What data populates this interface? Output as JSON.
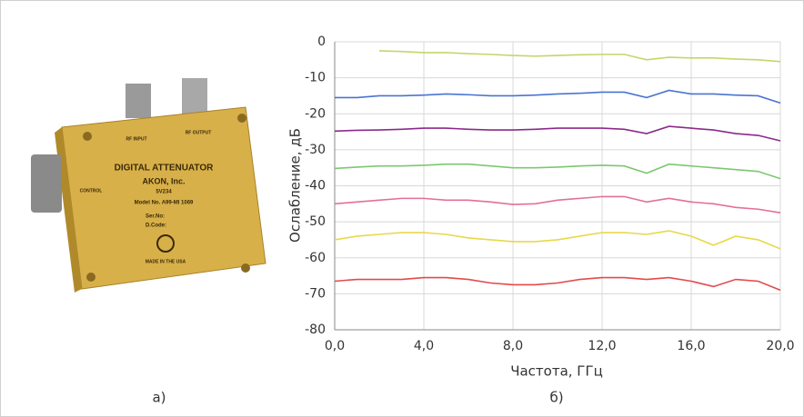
{
  "captions": [
    "а)",
    "б)"
  ],
  "photo": {
    "labels": [
      "RF INPUT",
      "RF OUTPUT",
      "DIGITAL ATTENUATOR",
      "AKON, Inc.",
      "5V234",
      "Model No. A99-MI 1069",
      "Ser.No:",
      "D.Code:",
      "MADE IN THE USA",
      "CONTROL"
    ]
  },
  "chart_data": {
    "type": "line",
    "xlabel": "Частота, ГГц",
    "ylabel": "Ослабление, дБ",
    "x": [
      0,
      1,
      2,
      3,
      4,
      5,
      6,
      7,
      8,
      9,
      10,
      11,
      12,
      13,
      14,
      15,
      16,
      17,
      18,
      19,
      20
    ],
    "xlim": [
      0,
      20
    ],
    "xticks": [
      {
        "value": 0,
        "label": "0,0"
      },
      {
        "value": 4,
        "label": "4,0"
      },
      {
        "value": 8,
        "label": "8,0"
      },
      {
        "value": 12,
        "label": "12,0"
      },
      {
        "value": 16,
        "label": "16,0"
      },
      {
        "value": 20,
        "label": "20,0"
      }
    ],
    "ylim": [
      -80,
      0
    ],
    "yticks": [
      -80,
      -70,
      -60,
      -50,
      -40,
      -30,
      -20,
      -10,
      0
    ],
    "grid": true,
    "series": [
      {
        "color": "#c8d46a",
        "values": [
          null,
          null,
          -2.5,
          -2.7,
          -3,
          -3,
          -3.3,
          -3.5,
          -3.8,
          -4,
          -3.8,
          -3.6,
          -3.5,
          -3.5,
          -5,
          -4.3,
          -4.5,
          -4.5,
          -4.8,
          -5,
          -5.5
        ]
      },
      {
        "color": "#4a74d0",
        "values": [
          -15.5,
          -15.5,
          -15,
          -15,
          -14.8,
          -14.5,
          -14.7,
          -15,
          -15,
          -14.8,
          -14.5,
          -14.3,
          -14,
          -14,
          -15.5,
          -13.5,
          -14.5,
          -14.5,
          -14.8,
          -15,
          -17
        ]
      },
      {
        "color": "#8b2a8a",
        "values": [
          -24.8,
          -24.6,
          -24.5,
          -24.3,
          -24,
          -24,
          -24.3,
          -24.5,
          -24.5,
          -24.3,
          -24,
          -24,
          -24,
          -24.3,
          -25.5,
          -23.5,
          -24,
          -24.5,
          -25.5,
          -26,
          -27.5
        ]
      },
      {
        "color": "#7cc870",
        "values": [
          -35.2,
          -34.8,
          -34.5,
          -34.5,
          -34.3,
          -34,
          -34,
          -34.5,
          -35,
          -35,
          -34.8,
          -34.5,
          -34.3,
          -34.5,
          -36.5,
          -34,
          -34.5,
          -35,
          -35.5,
          -36,
          -38
        ]
      },
      {
        "color": "#e2709a",
        "values": [
          -45,
          -44.5,
          -44,
          -43.5,
          -43.5,
          -44,
          -44,
          -44.5,
          -45.2,
          -45,
          -44,
          -43.5,
          -43,
          -43,
          -44.5,
          -43.5,
          -44.5,
          -45,
          -46,
          -46.5,
          -47.5
        ]
      },
      {
        "color": "#e8d84a",
        "values": [
          -55,
          -54,
          -53.5,
          -53,
          -53,
          -53.5,
          -54.5,
          -55,
          -55.5,
          -55.5,
          -55,
          -54,
          -53,
          -53,
          -53.5,
          -52.5,
          -54,
          -56.5,
          -54,
          -55,
          -57.5
        ]
      },
      {
        "color": "#e24a4a",
        "values": [
          -66.5,
          -66,
          -66,
          -66,
          -65.5,
          -65.5,
          -66,
          -67,
          -67.5,
          -67.5,
          -67,
          -66,
          -65.5,
          -65.5,
          -66,
          -65.5,
          -66.5,
          -68,
          -66,
          -66.5,
          -69
        ]
      }
    ]
  }
}
